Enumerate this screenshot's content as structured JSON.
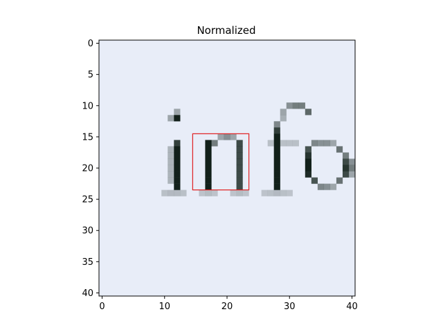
{
  "chart_data": {
    "type": "heatmap",
    "title": "Normalized",
    "xlabel": "",
    "ylabel": "",
    "xlim": [
      -0.5,
      40.5
    ],
    "ylim": [
      40.5,
      -0.5
    ],
    "x_ticks": [
      0,
      10,
      20,
      30,
      40
    ],
    "y_ticks": [
      0,
      5,
      10,
      15,
      20,
      25,
      30,
      35,
      40
    ],
    "x_tick_labels": [
      "0",
      "10",
      "20",
      "30",
      "40"
    ],
    "y_tick_labels": [
      "0",
      "5",
      "10",
      "15",
      "20",
      "25",
      "30",
      "35",
      "40"
    ],
    "grid": false,
    "background_color": "#e8edf8",
    "ink_color": "#12201a",
    "visible_text": "info",
    "highlight_box": {
      "x0": 15,
      "y0": 15,
      "x1": 24,
      "y1": 24,
      "color": "#e02020"
    }
  }
}
